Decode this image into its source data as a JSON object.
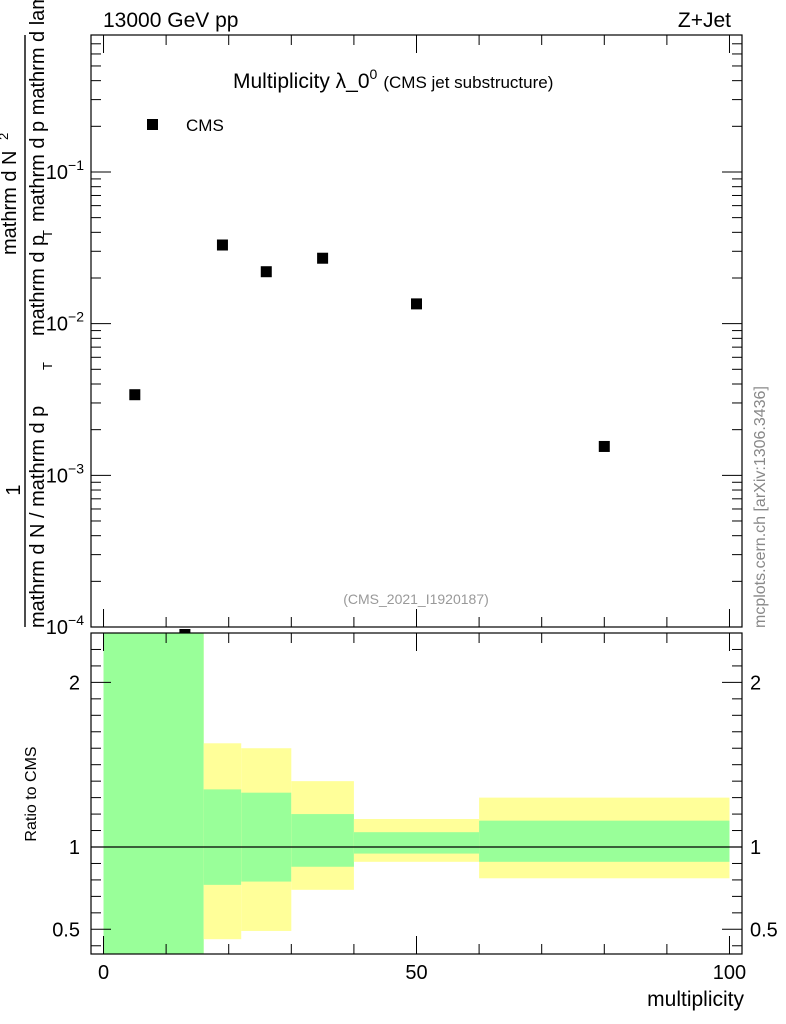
{
  "header": {
    "energy_label": "13000 GeV pp",
    "process_label": "Z+Jet"
  },
  "side_text": "mcplots.cern.ch [arXiv:1306.3436]",
  "chart_data": [
    {
      "type": "scatter",
      "title": "Multiplicity λ_0",
      "title_sup": "0",
      "subtitle": "(CMS jet substructure)",
      "analysis_id": "(CMS_2021_I1920187)",
      "ylabel_numerator": "1",
      "ylabel_den_line1": "mathrm d N / mathrm d p",
      "ylabel_den_line2": "mathrm d p",
      "ylabel_den_line3": "mathrm d lambda",
      "ylabel_den_sub": "T",
      "ylabel_num_line": "mathrm d",
      "ylabel_num_line2": "N",
      "ylabel_num_sup": "2",
      "ylabel_mid": "mathrm d p",
      "ylabel_mid_sub": "T",
      "ylabel_mid2": "mathrm d lambda",
      "y_scale": "log",
      "ylim": [
        0.0001,
        0.8
      ],
      "xlim": [
        -2,
        102
      ],
      "y_ticks": [
        {
          "value": 0.1,
          "base": "10",
          "exp": "−1"
        },
        {
          "value": 0.01,
          "base": "10",
          "exp": "−2"
        },
        {
          "value": 0.001,
          "base": "10",
          "exp": "−3"
        },
        {
          "value": 0.0001,
          "base": "10",
          "exp": "−4"
        }
      ],
      "legend_position": "top-left",
      "series": [
        {
          "name": "CMS",
          "color": "#000000",
          "marker": "square",
          "points": [
            {
              "x": 5,
              "y": 0.0034
            },
            {
              "x": 13,
              "y": 9e-05
            },
            {
              "x": 19,
              "y": 0.033
            },
            {
              "x": 26,
              "y": 0.022
            },
            {
              "x": 35,
              "y": 0.027
            },
            {
              "x": 50,
              "y": 0.0135
            },
            {
              "x": 80,
              "y": 0.00155
            }
          ]
        }
      ]
    },
    {
      "type": "area",
      "ylabel": "Ratio to CMS",
      "xlabel": "multiplicity",
      "xlim": [
        -2,
        102
      ],
      "ylim": [
        0.35,
        2.3
      ],
      "x_ticks": [
        {
          "value": 0,
          "label": "0"
        },
        {
          "value": 50,
          "label": "50"
        },
        {
          "value": 100,
          "label": "100"
        }
      ],
      "y_ticks": [
        {
          "value": 0.5,
          "label": "0.5"
        },
        {
          "value": 1,
          "label": "1"
        },
        {
          "value": 2,
          "label": "2"
        }
      ],
      "reference_line": 1,
      "bins": [
        {
          "x0": 0,
          "x1": 16,
          "stat_lo": 0.3,
          "stat_hi": 2.5,
          "tot_lo": 0.3,
          "tot_hi": 2.5
        },
        {
          "x0": 16,
          "x1": 22,
          "stat_lo": 0.77,
          "stat_hi": 1.35,
          "tot_lo": 0.44,
          "tot_hi": 1.63
        },
        {
          "x0": 22,
          "x1": 30,
          "stat_lo": 0.79,
          "stat_hi": 1.33,
          "tot_lo": 0.49,
          "tot_hi": 1.6
        },
        {
          "x0": 30,
          "x1": 40,
          "stat_lo": 0.88,
          "stat_hi": 1.2,
          "tot_lo": 0.74,
          "tot_hi": 1.4
        },
        {
          "x0": 40,
          "x1": 60,
          "stat_lo": 0.96,
          "stat_hi": 1.09,
          "tot_lo": 0.91,
          "tot_hi": 1.17
        },
        {
          "x0": 60,
          "x1": 100,
          "stat_lo": 0.91,
          "stat_hi": 1.16,
          "tot_lo": 0.81,
          "tot_hi": 1.3
        }
      ],
      "colors": {
        "stat": "#99ff99",
        "total": "#ffff99"
      }
    }
  ]
}
